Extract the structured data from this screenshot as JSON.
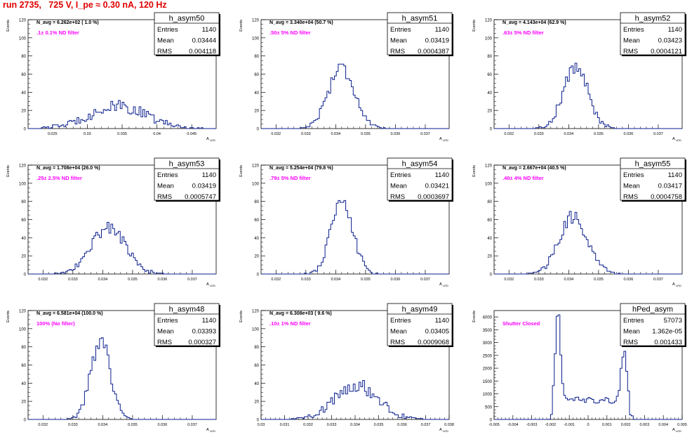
{
  "title": "run 2735,   725 V, I_pe ≈ 0.30 nA, 120 Hz",
  "colors": {
    "title": "#e00000",
    "histogram": "#0a1e8c",
    "annotation": "#ff00ff",
    "text": "#000000"
  },
  "chart_data": [
    {
      "type": "histogram",
      "name": "h_asym50",
      "stats": {
        "entries": "1140",
        "mean": "0.03444",
        "rms": "0.004118"
      },
      "nav": "N_avg = 6.262e+02 ( 1.0 %)",
      "filter": ".1± 0.1% ND filter",
      "ylabel": "Events",
      "xlabel": "A_{LED}",
      "xlim": [
        0.0215,
        0.0485
      ],
      "ylim": [
        0,
        120
      ],
      "yticks": [
        0,
        20,
        40,
        60,
        80,
        100,
        120
      ],
      "xticks": [
        0.025,
        0.03,
        0.035,
        0.04,
        0.045
      ],
      "xtick_labels": [
        "0.025",
        "0.03",
        "0.035",
        "0.04",
        "0.045"
      ],
      "shape": {
        "kind": "gauss",
        "mean": 0.0344,
        "sigma": 0.0041,
        "peak": 24,
        "noise": 7
      }
    },
    {
      "type": "histogram",
      "name": "h_asym51",
      "stats": {
        "entries": "1140",
        "mean": "0.03419",
        "rms": "0.0004387"
      },
      "nav": "N_avg = 3.340e+04 (50.7 %)",
      "filter": ".50± 5% ND filter",
      "ylabel": "Events",
      "xlabel": "A_{LED}",
      "xlim": [
        0.0315,
        0.0378
      ],
      "ylim": [
        0,
        120
      ],
      "yticks": [
        0,
        20,
        40,
        60,
        80,
        100,
        120
      ],
      "xticks": [
        0.032,
        0.033,
        0.034,
        0.035,
        0.036,
        0.037
      ],
      "xtick_labels": [
        "0.032",
        "0.033",
        "0.034",
        "0.035",
        "0.036",
        "0.037"
      ],
      "shape": {
        "kind": "gauss",
        "mean": 0.03419,
        "sigma": 0.00044,
        "peak": 68,
        "noise": 9
      }
    },
    {
      "type": "histogram",
      "name": "h_asym52",
      "stats": {
        "entries": "1140",
        "mean": "0.03423",
        "rms": "0.0004121"
      },
      "nav": "N_avg = 4.143e+04 (62.9 %)",
      "filter": ".63± 5% ND filter",
      "ylabel": "Events",
      "xlabel": "A_{LED}",
      "xlim": [
        0.0315,
        0.0378
      ],
      "ylim": [
        0,
        120
      ],
      "yticks": [
        0,
        20,
        40,
        60,
        80,
        100,
        120
      ],
      "xticks": [
        0.032,
        0.033,
        0.034,
        0.035,
        0.036,
        0.037
      ],
      "xtick_labels": [
        "0.032",
        "0.033",
        "0.034",
        "0.035",
        "0.036",
        "0.037"
      ],
      "shape": {
        "kind": "gauss",
        "mean": 0.03423,
        "sigma": 0.00041,
        "peak": 68,
        "noise": 9
      }
    },
    {
      "type": "histogram",
      "name": "h_asym53",
      "stats": {
        "entries": "1140",
        "mean": "0.03419",
        "rms": "0.0005747"
      },
      "nav": "N_avg = 1.708e+04 (26.0 %)",
      "filter": ".25± 2.5% ND filter",
      "ylabel": "Events",
      "xlabel": "A_{LED}",
      "xlim": [
        0.0315,
        0.0378
      ],
      "ylim": [
        0,
        120
      ],
      "yticks": [
        0,
        20,
        40,
        60,
        80,
        100,
        120
      ],
      "xticks": [
        0.032,
        0.033,
        0.034,
        0.035,
        0.036,
        0.037
      ],
      "xtick_labels": [
        "0.032",
        "0.033",
        "0.034",
        "0.035",
        "0.036",
        "0.037"
      ],
      "shape": {
        "kind": "gauss",
        "mean": 0.03419,
        "sigma": 0.00057,
        "peak": 52,
        "noise": 8
      }
    },
    {
      "type": "histogram",
      "name": "h_asym54",
      "stats": {
        "entries": "1140",
        "mean": "0.03421",
        "rms": "0.0003697"
      },
      "nav": "N_avg = 5.254e+04 (79.8 %)",
      "filter": ".79± 5% ND filter",
      "ylabel": "Events",
      "xlabel": "A_{LED}",
      "xlim": [
        0.0315,
        0.0378
      ],
      "ylim": [
        0,
        120
      ],
      "yticks": [
        0,
        20,
        40,
        60,
        80,
        100,
        120
      ],
      "xticks": [
        0.032,
        0.033,
        0.034,
        0.035,
        0.036,
        0.037
      ],
      "xtick_labels": [
        "0.032",
        "0.033",
        "0.034",
        "0.035",
        "0.036",
        "0.037"
      ],
      "shape": {
        "kind": "gauss",
        "mean": 0.03421,
        "sigma": 0.00037,
        "peak": 78,
        "noise": 9
      }
    },
    {
      "type": "histogram",
      "name": "h_asym55",
      "stats": {
        "entries": "1140",
        "mean": "0.03417",
        "rms": "0.0004758"
      },
      "nav": "N_avg = 2.667e+04 (40.5 %)",
      "filter": ".40± 4% ND filter",
      "ylabel": "Events",
      "xlabel": "A_{LED}",
      "xlim": [
        0.0315,
        0.0378
      ],
      "ylim": [
        0,
        120
      ],
      "yticks": [
        0,
        20,
        40,
        60,
        80,
        100,
        120
      ],
      "xticks": [
        0.032,
        0.033,
        0.034,
        0.035,
        0.036,
        0.037
      ],
      "xtick_labels": [
        "0.032",
        "0.033",
        "0.034",
        "0.035",
        "0.036",
        "0.037"
      ],
      "shape": {
        "kind": "gauss",
        "mean": 0.03417,
        "sigma": 0.00048,
        "peak": 62,
        "noise": 9
      }
    },
    {
      "type": "histogram",
      "name": "h_asym48",
      "stats": {
        "entries": "1140",
        "mean": "0.03393",
        "rms": "0.000327"
      },
      "nav": "N_avg = 6.581e+04 (100.0 %)",
      "filter": "100% (No filter)",
      "ylabel": "Events",
      "xlabel": "A_{LED}",
      "xlim": [
        0.0315,
        0.0378
      ],
      "ylim": [
        0,
        120
      ],
      "yticks": [
        0,
        20,
        40,
        60,
        80,
        100,
        120
      ],
      "xticks": [
        0.032,
        0.033,
        0.034,
        0.035,
        0.036,
        0.037
      ],
      "xtick_labels": [
        "0.032",
        "0.033",
        "0.034",
        "0.035",
        "0.036",
        "0.037"
      ],
      "shape": {
        "kind": "gauss",
        "mean": 0.03393,
        "sigma": 0.00033,
        "peak": 86,
        "noise": 9
      }
    },
    {
      "type": "histogram",
      "name": "h_asym49",
      "stats": {
        "entries": "1140",
        "mean": "0.03405",
        "rms": "0.0009068"
      },
      "nav": "N_avg = 6.308e+03 ( 9.6 %)",
      "filter": ".10± 1% ND filter",
      "ylabel": "Events",
      "xlabel": "A_{LED}",
      "xlim": [
        0.03,
        0.038
      ],
      "ylim": [
        0,
        120
      ],
      "yticks": [
        0,
        20,
        40,
        60,
        80,
        100,
        120
      ],
      "xticks": [
        0.03,
        0.031,
        0.032,
        0.033,
        0.034,
        0.035,
        0.036,
        0.037,
        0.038
      ],
      "xtick_labels": [
        "0.03",
        "0.031",
        "0.032",
        "0.033",
        "0.034",
        "0.035",
        "0.036",
        "0.037",
        "0.038"
      ],
      "shape": {
        "kind": "gauss",
        "mean": 0.03405,
        "sigma": 0.0009,
        "peak": 38,
        "noise": 8
      }
    },
    {
      "type": "histogram",
      "name": "hPed_asym",
      "stats": {
        "entries": "57073",
        "mean": "1.362e-05",
        "rms": "0.001433"
      },
      "nav": "",
      "filter": "Shutter Closed",
      "ylabel": "Events",
      "xlabel": "A_{LED}",
      "xlim": [
        -0.005,
        0.005
      ],
      "ylim": [
        0,
        4250
      ],
      "yticks": [
        0,
        500,
        1000,
        1500,
        2000,
        2500,
        3000,
        3500,
        4000
      ],
      "xticks": [
        -0.005,
        -0.004,
        -0.003,
        -0.002,
        -0.001,
        0,
        0.001,
        0.002,
        0.003,
        0.004,
        0.005
      ],
      "xtick_labels": [
        "-0.005",
        "-0.004",
        "-0.003",
        "-0.002",
        "-0.001",
        "0",
        "0.001",
        "0.002",
        "0.003",
        "0.004",
        "0.005"
      ],
      "shape": {
        "kind": "ped",
        "peaks": [
          {
            "mean": -0.0016,
            "sigma": 0.00013,
            "amp": 3500
          },
          {
            "mean": 0.0019,
            "sigma": 0.00015,
            "amp": 1900
          }
        ],
        "base": 750,
        "edges": [
          -0.0019,
          0.0022
        ],
        "noise": 120
      }
    }
  ]
}
